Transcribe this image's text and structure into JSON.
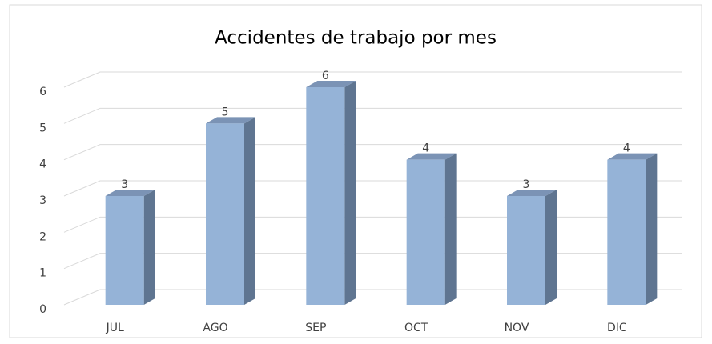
{
  "chart_data": {
    "type": "bar",
    "title": "Accidentes de trabajo por mes",
    "categories": [
      "JUL",
      "AGO",
      "SEP",
      "OCT",
      "NOV",
      "DIC"
    ],
    "values": [
      3,
      5,
      6,
      4,
      3,
      4
    ],
    "color": "#95b3d7",
    "ylim": [
      0,
      6
    ],
    "yticks": [
      0,
      1,
      2,
      3,
      4,
      5,
      6
    ],
    "grid": true
  }
}
